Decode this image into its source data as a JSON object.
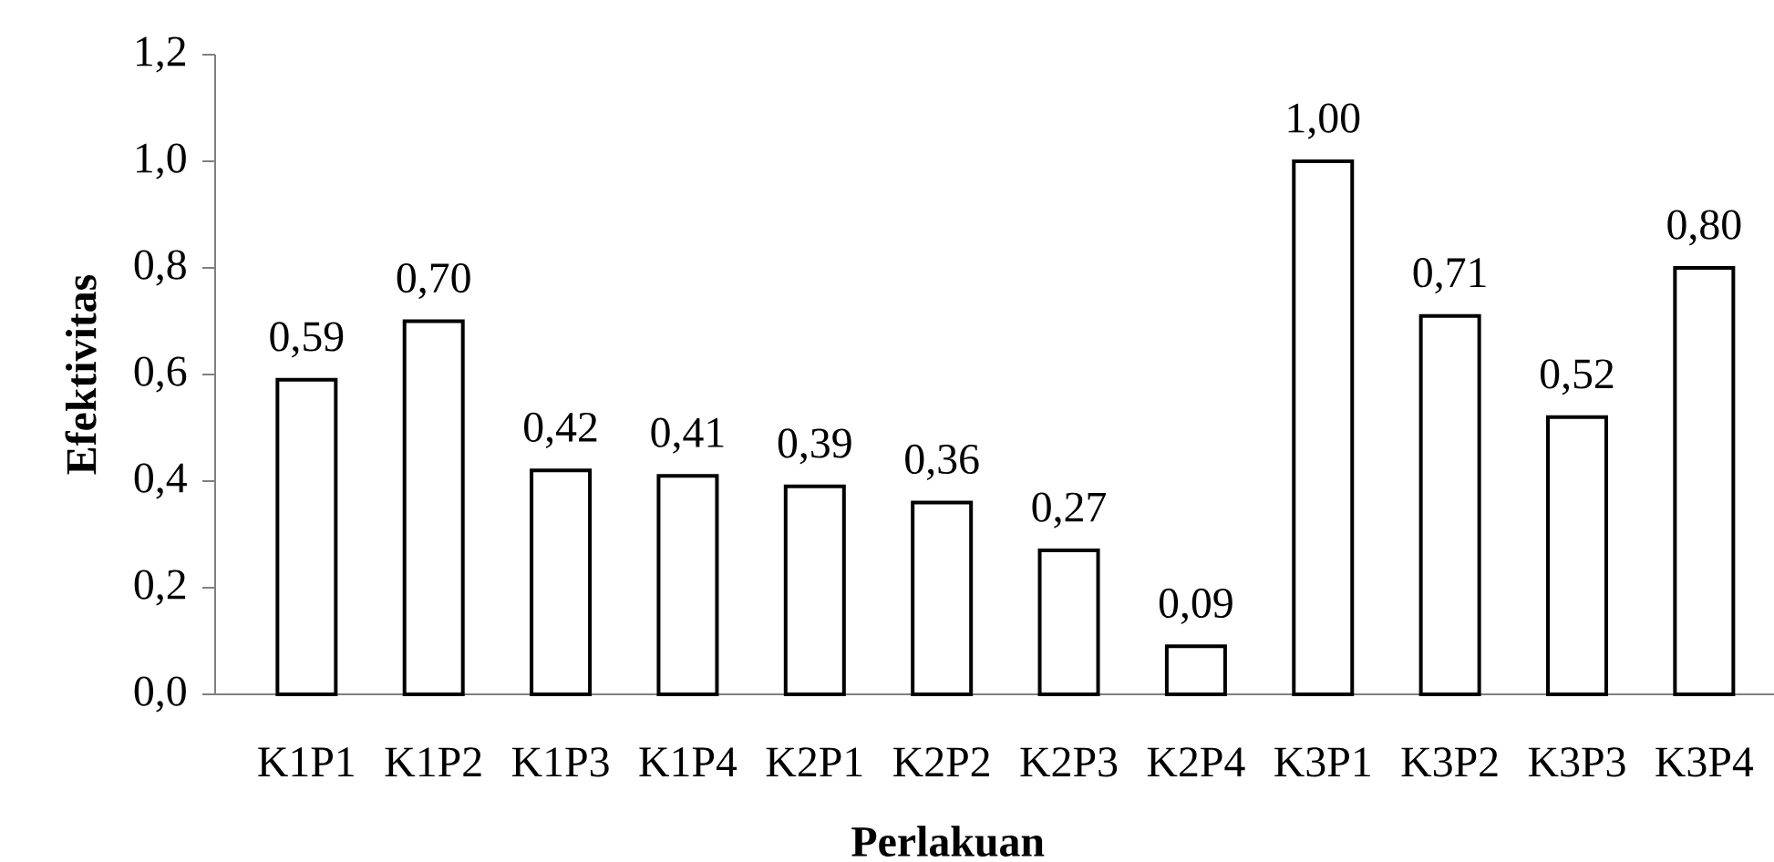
{
  "chart_data": {
    "type": "bar",
    "xlabel": "Perlakuan",
    "ylabel": "Efektivitas",
    "categories": [
      "K1P1",
      "K1P2",
      "K1P3",
      "K1P4",
      "K2P1",
      "K2P2",
      "K2P3",
      "K2P4",
      "K3P1",
      "K3P2",
      "K3P3",
      "K3P4"
    ],
    "values": [
      0.59,
      0.7,
      0.42,
      0.41,
      0.39,
      0.36,
      0.27,
      0.09,
      1.0,
      0.71,
      0.52,
      0.8
    ],
    "value_labels": [
      "0,59",
      "0,70",
      "0,42",
      "0,41",
      "0,39",
      "0,36",
      "0,27",
      "0,09",
      "1,00",
      "0,71",
      "0,52",
      "0,80"
    ],
    "color": "#ffffff",
    "ylim": [
      0,
      1.2
    ],
    "yticks": [
      {
        "value": 0,
        "label": "0,0"
      },
      {
        "value": 0.2,
        "label": "0,2"
      },
      {
        "value": 0.4,
        "label": "0,4"
      },
      {
        "value": 0.6,
        "label": "0,6"
      },
      {
        "value": 0.8,
        "label": "0,8"
      },
      {
        "value": 1.0,
        "label": "1,0"
      },
      {
        "value": 1.2,
        "label": "1,2"
      }
    ],
    "grid": false
  }
}
